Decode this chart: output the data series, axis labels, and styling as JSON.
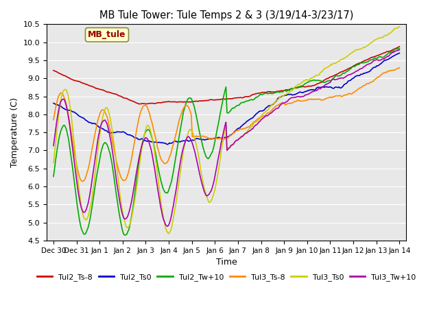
{
  "title": "MB Tule Tower: Tule Temps 2 & 3 (3/19/14-3/23/17)",
  "xlabel": "Time",
  "ylabel": "Temperature (C)",
  "ylim": [
    4.5,
    10.5
  ],
  "yticks": [
    4.5,
    5.0,
    5.5,
    6.0,
    6.5,
    7.0,
    7.5,
    8.0,
    8.5,
    9.0,
    9.5,
    10.0,
    10.5
  ],
  "bg_color": "#e8e8e8",
  "line_colors": {
    "Tul2_Ts-8": "#cc0000",
    "Tul2_Ts0": "#0000cc",
    "Tul2_Tw+10": "#00aa00",
    "Tul3_Ts-8": "#ff8800",
    "Tul3_Ts0": "#cccc00",
    "Tul3_Tw+10": "#aa00aa"
  },
  "annotation_text": "MB_tule",
  "annotation_color": "#990000",
  "annotation_bg": "#ffffcc",
  "n_points": 350,
  "total_days": 15,
  "tick_labels": [
    "Dec 30",
    "Dec 31",
    "Jan 1",
    "Jan 2",
    "Jan 3",
    "Jan 4",
    "Jan 5",
    "Jan 6",
    "Jan 7",
    "Jan 8",
    "Jan 9",
    "Jan 10",
    "Jan 11",
    "Jan 12",
    "Jan 13",
    "Jan 14"
  ]
}
